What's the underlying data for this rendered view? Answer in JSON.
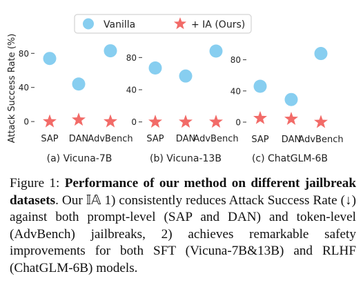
{
  "legend": {
    "items": [
      {
        "label": "Vanilla",
        "color": "#87cef0",
        "marker": "circle"
      },
      {
        "label": "+ IA (Ours)",
        "color": "#f26b68",
        "marker": "star"
      }
    ]
  },
  "y_axis_label": "Attack Success Rate (%)",
  "chart_data": [
    {
      "type": "scatter",
      "subtitle": "(a) Vicuna-7B",
      "categories": [
        "SAP",
        "DAN",
        "AdvBench"
      ],
      "series": [
        {
          "name": "Vanilla",
          "values": [
            74,
            44,
            83
          ]
        },
        {
          "name": "+ IA (Ours)",
          "values": [
            0,
            2,
            0
          ]
        }
      ],
      "yticks": [
        0,
        40,
        80
      ],
      "ylim": [
        -8,
        94
      ]
    },
    {
      "type": "scatter",
      "subtitle": "(b) Vicuna-13B",
      "categories": [
        "SAP",
        "DAN",
        "AdvBench"
      ],
      "series": [
        {
          "name": "Vanilla",
          "values": [
            67,
            57,
            88
          ]
        },
        {
          "name": "+ IA (Ours)",
          "values": [
            0,
            0,
            0
          ]
        }
      ],
      "yticks": [
        0,
        40,
        80
      ],
      "ylim": [
        -8,
        100
      ]
    },
    {
      "type": "scatter",
      "subtitle": "(c) ChatGLM-6B",
      "categories": [
        "SAP",
        "DAN",
        "AdvBench"
      ],
      "series": [
        {
          "name": "Vanilla",
          "values": [
            46,
            29,
            88
          ]
        },
        {
          "name": "+ IA (Ours)",
          "values": [
            5,
            4,
            0
          ]
        }
      ],
      "yticks": [
        0,
        40,
        80
      ],
      "ylim": [
        -8,
        100
      ]
    }
  ],
  "caption": {
    "lead": "Figure 1: ",
    "bold": "Performance of our method on different jailbreak datasets",
    "rest": ". Our 𝕀𝔸 1) consistently reduces Attack Success Rate (↓) against both prompt-level (SAP and DAN) and token-level (AdvBench) jailbreaks, 2) achieves remarkable safety improvements for both SFT (Vicuna-7B&13B) and RLHF (ChatGLM-6B) models."
  }
}
